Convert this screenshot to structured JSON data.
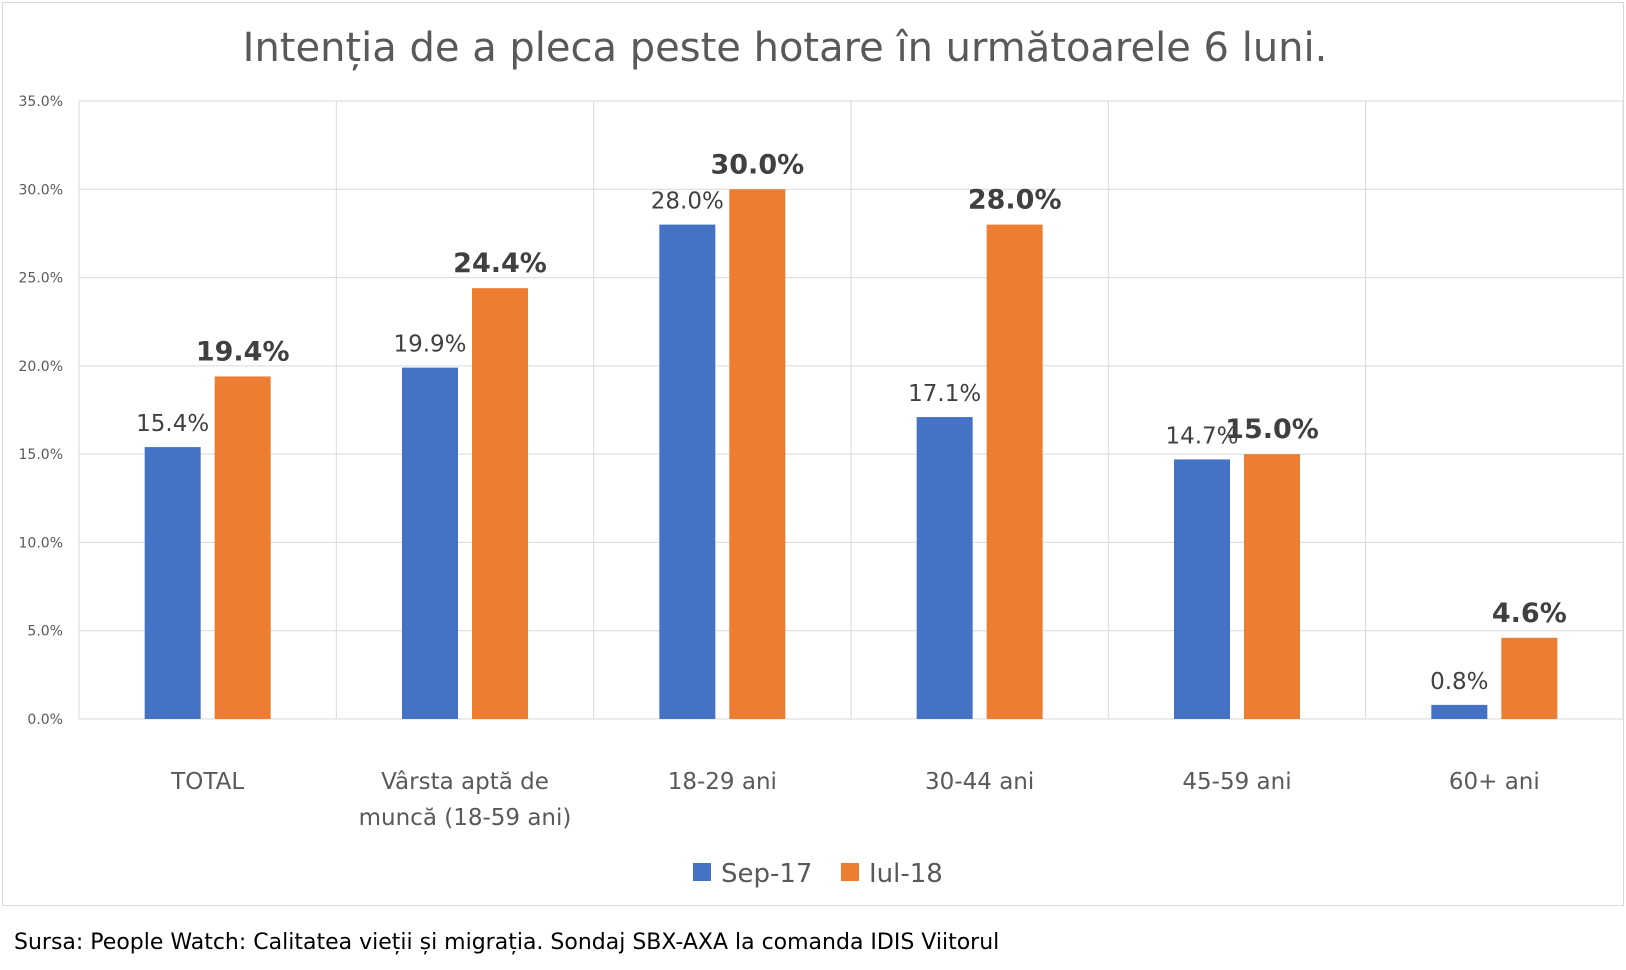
{
  "chart_data": {
    "type": "bar",
    "title": "Intenția de a pleca peste hotare în următoarele 6 luni.",
    "categories": [
      "TOTAL",
      "Vârsta aptă de\nmuncă (18-59 ani)",
      "18-29 ani",
      "30-44 ani",
      "45-59 ani",
      "60+ ani"
    ],
    "series": [
      {
        "name": "Sep-17",
        "color": "#4472c4",
        "values": [
          15.4,
          19.9,
          28.0,
          17.1,
          14.7,
          0.8
        ],
        "labels": [
          "15.4%",
          "19.9%",
          "28.0%",
          "17.1%",
          "14.7%",
          "0.8%"
        ],
        "label_weight": "normal"
      },
      {
        "name": "Iul-18",
        "color": "#ed7d31",
        "values": [
          19.4,
          24.4,
          30.0,
          28.0,
          15.0,
          4.6
        ],
        "labels": [
          "19.4%",
          "24.4%",
          "30.0%",
          "28.0%",
          "15.0%",
          "4.6%"
        ],
        "label_weight": "bold"
      }
    ],
    "ylim": [
      0,
      35
    ],
    "yticks": [
      "0.0%",
      "5.0%",
      "10.0%",
      "15.0%",
      "20.0%",
      "25.0%",
      "30.0%",
      "35.0%"
    ],
    "ytick_values": [
      0,
      5,
      10,
      15,
      20,
      25,
      30,
      35
    ],
    "grid": true,
    "legend_position": "bottom"
  },
  "source": "Sursa: People Watch: Calitatea vieții și migrația. Sondaj SBX-AXA la comanda IDIS Viitorul"
}
